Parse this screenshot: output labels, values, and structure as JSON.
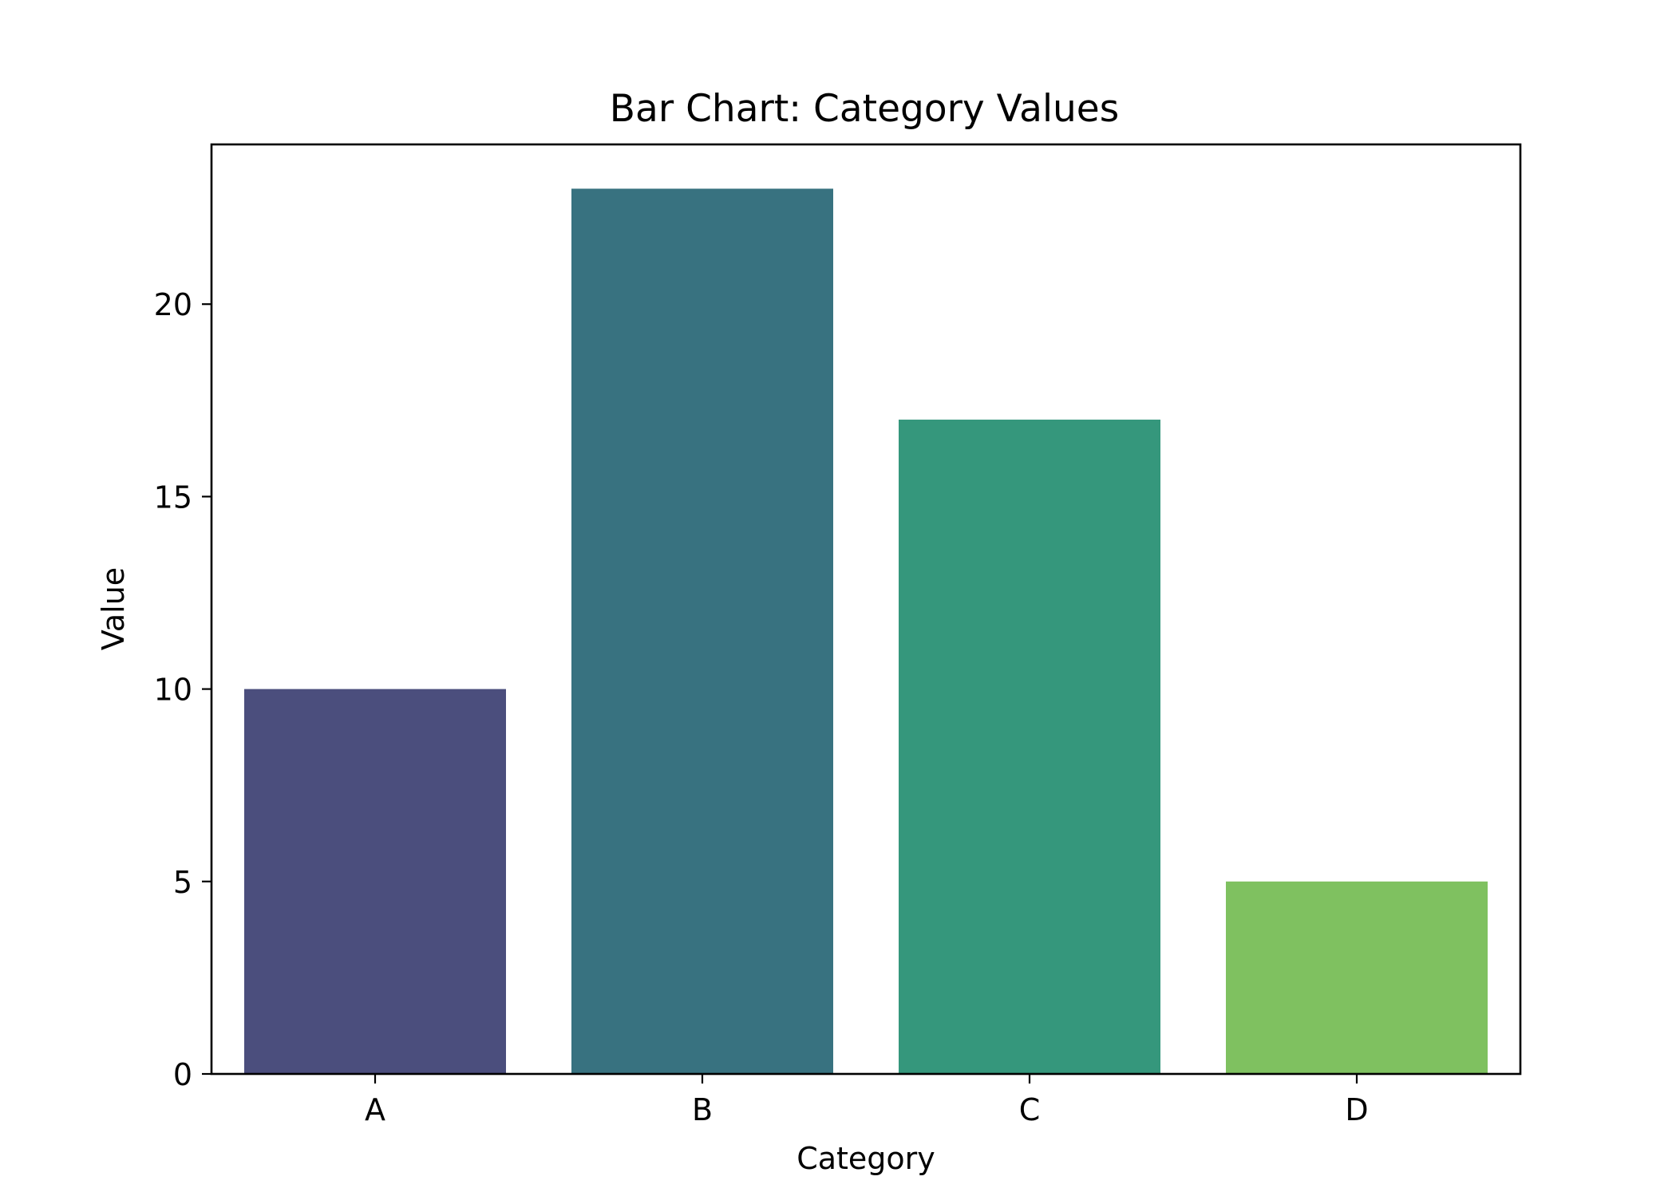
{
  "chart_data": {
    "type": "bar",
    "title": "Bar Chart: Category Values",
    "xlabel": "Category",
    "ylabel": "Value",
    "categories": [
      "A",
      "B",
      "C",
      "D"
    ],
    "values": [
      10,
      23,
      17,
      5
    ],
    "colors": [
      "#4b4e7d",
      "#387280",
      "#35977c",
      "#7fc160"
    ],
    "ylim": [
      0,
      24.15
    ],
    "yticks": [
      0,
      5,
      10,
      15,
      20
    ],
    "grid": false,
    "legend": false
  }
}
